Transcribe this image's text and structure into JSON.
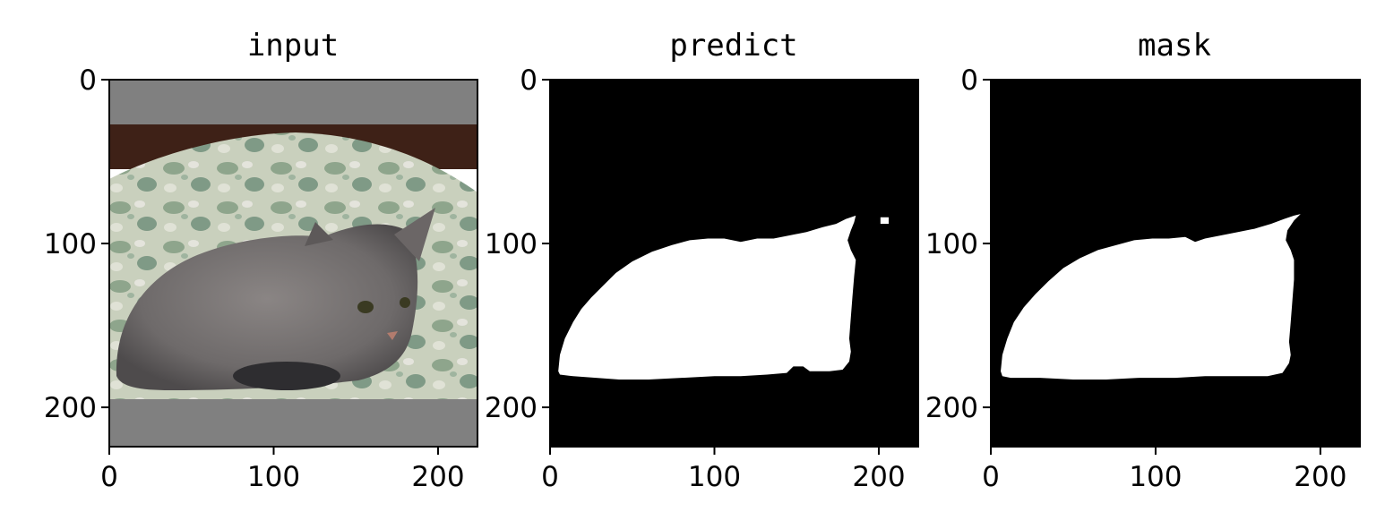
{
  "chart_data": [
    {
      "type": "image",
      "title": "input",
      "xlim": [
        0,
        224
      ],
      "ylim": [
        224,
        0
      ],
      "xticks": [
        0,
        100,
        200
      ],
      "yticks": [
        0,
        100,
        200
      ],
      "xtick_labels": [
        "0",
        "100",
        "200"
      ],
      "ytick_labels": [
        "0",
        "100",
        "200"
      ],
      "content": "photo of a gray tabby cat lying on a green floral cushion, gray letterbox padding above and below",
      "padding_color": "#808080",
      "image_rows": [
        27,
        195
      ]
    },
    {
      "type": "image",
      "title": "predict",
      "xlim": [
        0,
        224
      ],
      "ylim": [
        224,
        0
      ],
      "xticks": [
        0,
        100,
        200
      ],
      "yticks": [
        0,
        100,
        200
      ],
      "xtick_labels": [
        "0",
        "100",
        "200"
      ],
      "ytick_labels": [
        "0",
        "100",
        "200"
      ],
      "content": "binary segmentation mask (white foreground on black)",
      "foreground": "#ffffff",
      "background": "#000000",
      "mask_outline": [
        [
          5,
          178
        ],
        [
          6,
          168
        ],
        [
          9,
          158
        ],
        [
          14,
          148
        ],
        [
          19,
          140
        ],
        [
          25,
          133
        ],
        [
          32,
          126
        ],
        [
          40,
          118
        ],
        [
          50,
          111
        ],
        [
          62,
          105
        ],
        [
          74,
          101
        ],
        [
          85,
          98
        ],
        [
          96,
          97
        ],
        [
          106,
          97
        ],
        [
          116,
          99
        ],
        [
          126,
          97
        ],
        [
          136,
          97
        ],
        [
          146,
          95
        ],
        [
          156,
          93
        ],
        [
          166,
          90
        ],
        [
          174,
          88
        ],
        [
          180,
          85
        ],
        [
          186,
          83
        ],
        [
          185,
          87
        ],
        [
          183,
          92
        ],
        [
          181,
          98
        ],
        [
          183,
          104
        ],
        [
          186,
          110
        ],
        [
          185,
          120
        ],
        [
          184,
          132
        ],
        [
          183,
          145
        ],
        [
          182,
          158
        ],
        [
          183,
          166
        ],
        [
          182,
          172
        ],
        [
          178,
          177
        ],
        [
          170,
          178
        ],
        [
          158,
          178
        ],
        [
          154,
          175
        ],
        [
          148,
          175
        ],
        [
          144,
          179
        ],
        [
          132,
          180
        ],
        [
          116,
          181
        ],
        [
          100,
          181
        ],
        [
          80,
          182
        ],
        [
          60,
          183
        ],
        [
          42,
          183
        ],
        [
          28,
          182
        ],
        [
          14,
          181
        ],
        [
          6,
          180
        ]
      ],
      "mask_islands": [
        [
          [
            201,
            84
          ],
          [
            206,
            84
          ],
          [
            206,
            88
          ],
          [
            201,
            88
          ]
        ]
      ]
    },
    {
      "type": "image",
      "title": "mask",
      "xlim": [
        0,
        224
      ],
      "ylim": [
        224,
        0
      ],
      "xticks": [
        0,
        100,
        200
      ],
      "yticks": [
        0,
        100,
        200
      ],
      "xtick_labels": [
        "0",
        "100",
        "200"
      ],
      "ytick_labels": [
        "0",
        "100",
        "200"
      ],
      "content": "ground-truth binary mask (white foreground on black)",
      "foreground": "#ffffff",
      "background": "#000000",
      "mask_outline": [
        [
          6,
          178
        ],
        [
          7,
          168
        ],
        [
          10,
          158
        ],
        [
          14,
          148
        ],
        [
          20,
          139
        ],
        [
          27,
          131
        ],
        [
          35,
          123
        ],
        [
          44,
          115
        ],
        [
          54,
          109
        ],
        [
          65,
          104
        ],
        [
          76,
          101
        ],
        [
          87,
          98
        ],
        [
          98,
          97
        ],
        [
          108,
          97
        ],
        [
          118,
          96
        ],
        [
          124,
          99
        ],
        [
          130,
          97
        ],
        [
          140,
          95
        ],
        [
          150,
          93
        ],
        [
          160,
          91
        ],
        [
          170,
          88
        ],
        [
          178,
          85
        ],
        [
          184,
          83
        ],
        [
          188,
          82
        ],
        [
          184,
          86
        ],
        [
          180,
          92
        ],
        [
          179,
          98
        ],
        [
          182,
          104
        ],
        [
          184,
          110
        ],
        [
          184,
          122
        ],
        [
          183,
          135
        ],
        [
          182,
          148
        ],
        [
          181,
          160
        ],
        [
          182,
          168
        ],
        [
          181,
          173
        ],
        [
          177,
          179
        ],
        [
          168,
          181
        ],
        [
          150,
          181
        ],
        [
          130,
          181
        ],
        [
          112,
          182
        ],
        [
          90,
          182
        ],
        [
          70,
          183
        ],
        [
          50,
          183
        ],
        [
          30,
          182
        ],
        [
          12,
          182
        ],
        [
          7,
          181
        ]
      ],
      "mask_islands": []
    }
  ]
}
